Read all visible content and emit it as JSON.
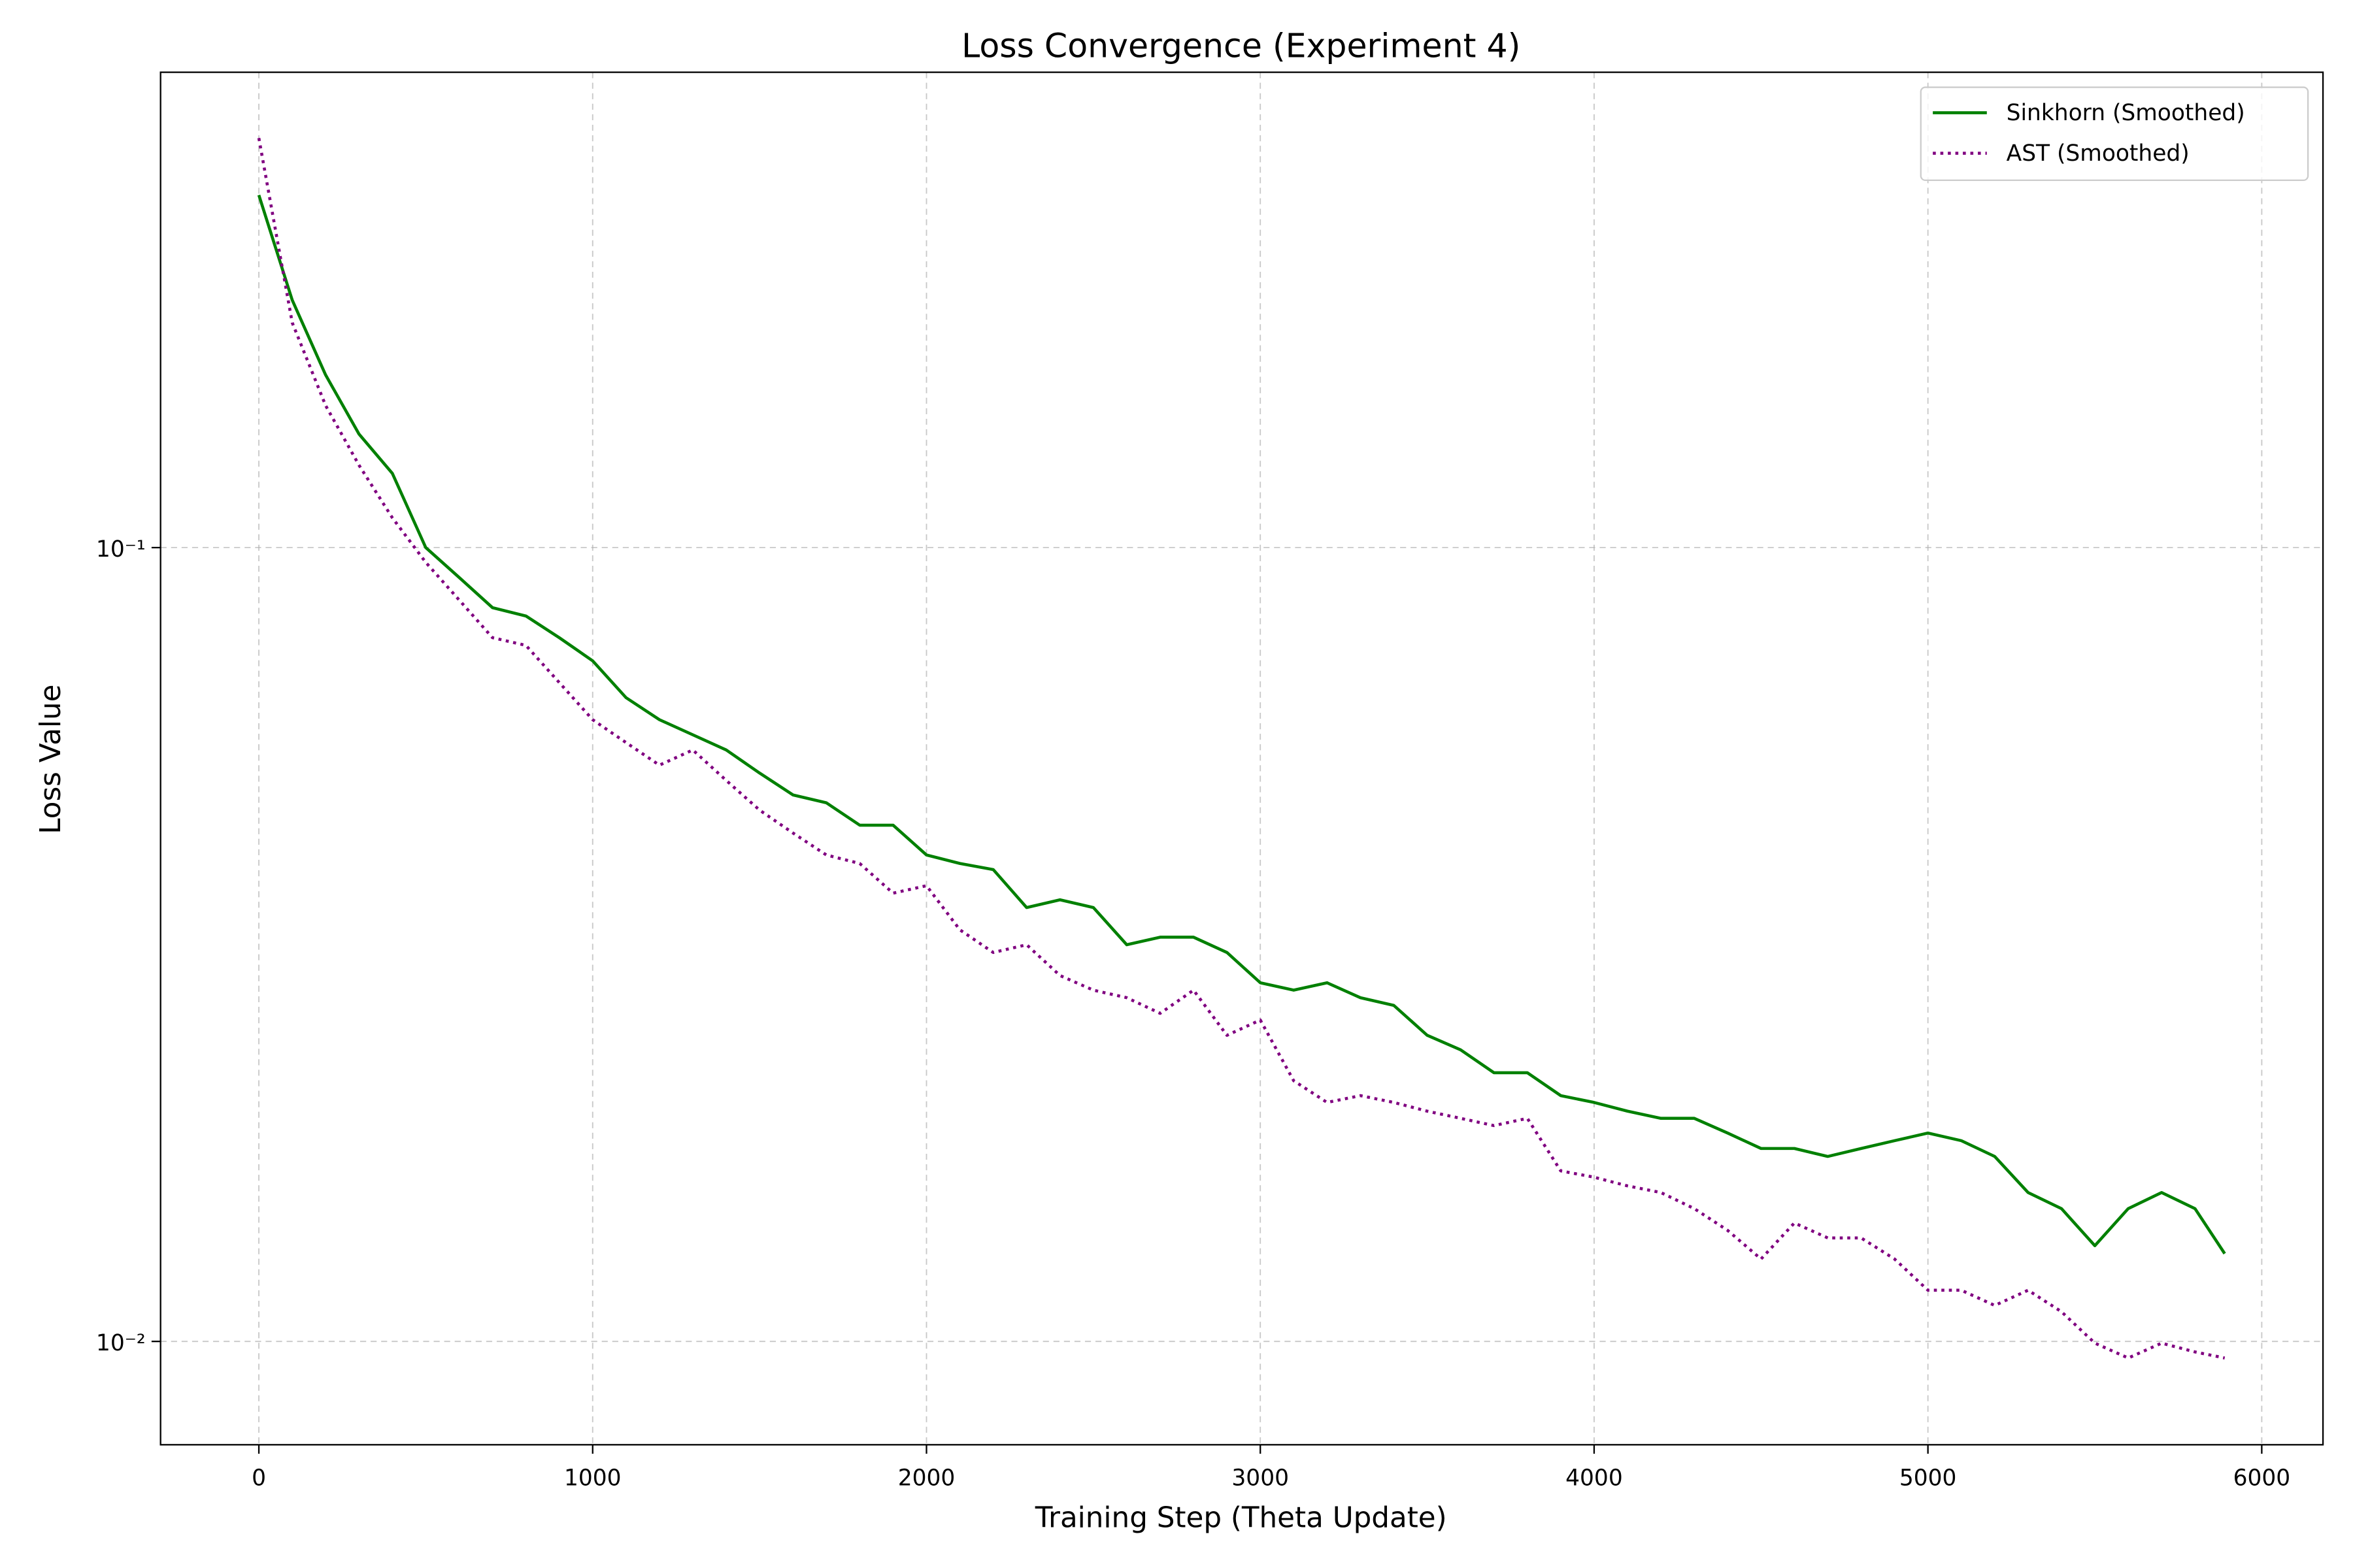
{
  "chart_data": {
    "type": "line",
    "title": "Loss Convergence (Experiment 4)",
    "xlabel": "Training Step (Theta Update)",
    "ylabel": "Loss Value",
    "x": [
      0,
      100,
      200,
      300,
      400,
      500,
      600,
      700,
      800,
      900,
      1000,
      1100,
      1200,
      1300,
      1400,
      1500,
      1600,
      1700,
      1800,
      1900,
      2000,
      2100,
      2200,
      2300,
      2400,
      2500,
      2600,
      2700,
      2800,
      2900,
      3000,
      3100,
      3200,
      3300,
      3400,
      3500,
      3600,
      3700,
      3800,
      3900,
      4000,
      4100,
      4200,
      4300,
      4400,
      4500,
      4600,
      4700,
      4800,
      4900,
      5000,
      5100,
      5200,
      5300,
      5400,
      5500,
      5600,
      5700,
      5800,
      5889
    ],
    "series": [
      {
        "name": "Sinkhorn (Smoothed)",
        "color": "#008000",
        "linestyle": "solid",
        "values": [
          0.278,
          0.205,
          0.165,
          0.139,
          0.124,
          0.1,
          0.0917,
          0.084,
          0.082,
          0.077,
          0.072,
          0.0647,
          0.0607,
          0.0581,
          0.0556,
          0.052,
          0.0488,
          0.0477,
          0.0447,
          0.0447,
          0.041,
          0.04,
          0.0393,
          0.0352,
          0.036,
          0.0352,
          0.0316,
          0.0323,
          0.0323,
          0.0309,
          0.0283,
          0.0277,
          0.0283,
          0.0271,
          0.0265,
          0.0243,
          0.0233,
          0.0218,
          0.0218,
          0.0204,
          0.02,
          0.0195,
          0.0191,
          0.0191,
          0.0183,
          0.0175,
          0.0175,
          0.0171,
          0.0175,
          0.0179,
          0.0183,
          0.0179,
          0.0171,
          0.0154,
          0.0147,
          0.0132,
          0.0147,
          0.0154,
          0.0147,
          0.0129
        ]
      },
      {
        "name": "AST (Smoothed)",
        "color": "#800080",
        "linestyle": "dotted",
        "values": [
          0.328,
          0.192,
          0.151,
          0.127,
          0.109,
          0.0958,
          0.0859,
          0.077,
          0.0753,
          0.0676,
          0.0607,
          0.0568,
          0.0532,
          0.0556,
          0.0509,
          0.0467,
          0.0437,
          0.041,
          0.04,
          0.0367,
          0.0375,
          0.033,
          0.0309,
          0.0316,
          0.0289,
          0.0277,
          0.0271,
          0.0259,
          0.0277,
          0.0243,
          0.0254,
          0.0213,
          0.02,
          0.0204,
          0.02,
          0.0195,
          0.0191,
          0.0187,
          0.0191,
          0.0164,
          0.0161,
          0.0157,
          0.0154,
          0.0147,
          0.0138,
          0.0127,
          0.0141,
          0.0135,
          0.0135,
          0.0127,
          0.0116,
          0.0116,
          0.0111,
          0.0116,
          0.0109,
          0.00995,
          0.00953,
          0.00995,
          0.0097,
          0.00953
        ]
      }
    ],
    "xlim": [
      -294.45,
      6183.45
    ],
    "xticks": [
      0,
      1000,
      2000,
      3000,
      4000,
      5000,
      6000
    ],
    "ylim": [
      0.00741,
      0.397
    ],
    "yscale": "log",
    "yticks": [
      {
        "value": 0.01,
        "label": "10⁻²"
      },
      {
        "value": 0.1,
        "label": "10⁻¹"
      }
    ],
    "grid": true,
    "legend": "upper right"
  }
}
